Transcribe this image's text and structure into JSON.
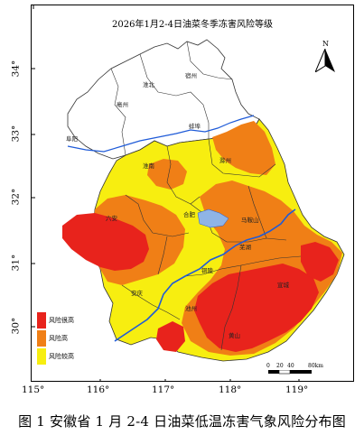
{
  "title": "2026年1月2-4日油菜冬季冻害风险等级",
  "caption": "图 1  安徽省 1 月 2-4 日油菜低温冻害气象风险分布图",
  "longitude_ticks": [
    "115°",
    "116°",
    "117°",
    "118°",
    "119°"
  ],
  "latitude_ticks": [
    "34°",
    "33°",
    "32°",
    "31°",
    "30°"
  ],
  "cities": [
    "宿州",
    "淮北",
    "亳州",
    "蚌埠",
    "阜阳",
    "淮南",
    "滁州",
    "合肥",
    "马鞍山",
    "六安",
    "芜湖",
    "宣城",
    "铜陵",
    "安庆",
    "池州",
    "黄山"
  ],
  "legend": [
    {
      "label": "风险很高",
      "color": "#e8231c"
    },
    {
      "label": "风险高",
      "color": "#f07f16"
    },
    {
      "label": "风险较高",
      "color": "#f7ee10"
    }
  ],
  "scale_bar": {
    "labels": [
      "0",
      "20",
      "40",
      "80km"
    ]
  },
  "north_arrow": "N",
  "colors": {
    "lake": "#8fb4e6",
    "river": "#1f5bd8",
    "boundary": "#333333"
  }
}
